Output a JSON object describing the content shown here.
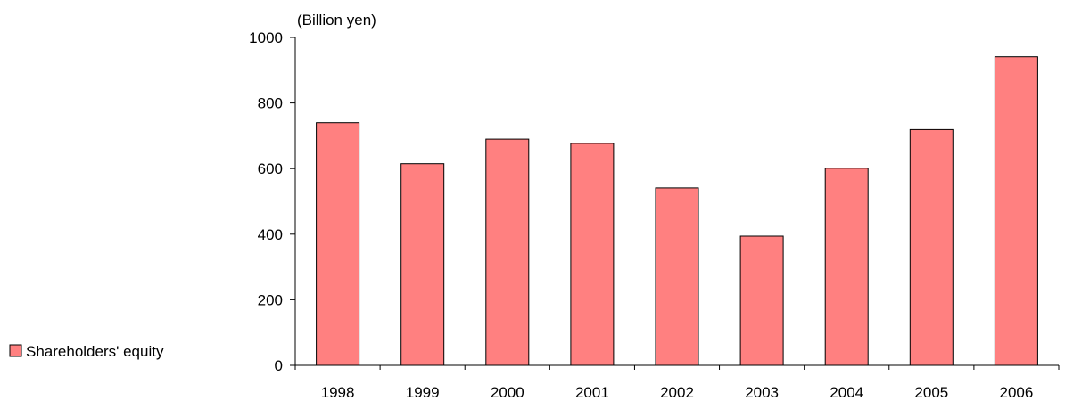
{
  "chart_data": {
    "type": "bar",
    "title": "",
    "xlabel": "",
    "ylabel": "",
    "unit_label": "(Billion yen)",
    "categories": [
      "1998",
      "1999",
      "2000",
      "2001",
      "2002",
      "2003",
      "2004",
      "2005",
      "2006"
    ],
    "series": [
      {
        "name": "Shareholders' equity",
        "values": [
          740,
          615,
          690,
          677,
          541,
          394,
          601,
          719,
          941
        ]
      }
    ],
    "ylim": [
      0,
      1000
    ],
    "yticks": [
      "0",
      "200",
      "400",
      "600",
      "800",
      "1000"
    ],
    "grid": false,
    "legend_position": "left",
    "colors": {
      "bar_fill": "#ff8080",
      "bar_stroke": "#000000",
      "axis": "#000000"
    }
  }
}
